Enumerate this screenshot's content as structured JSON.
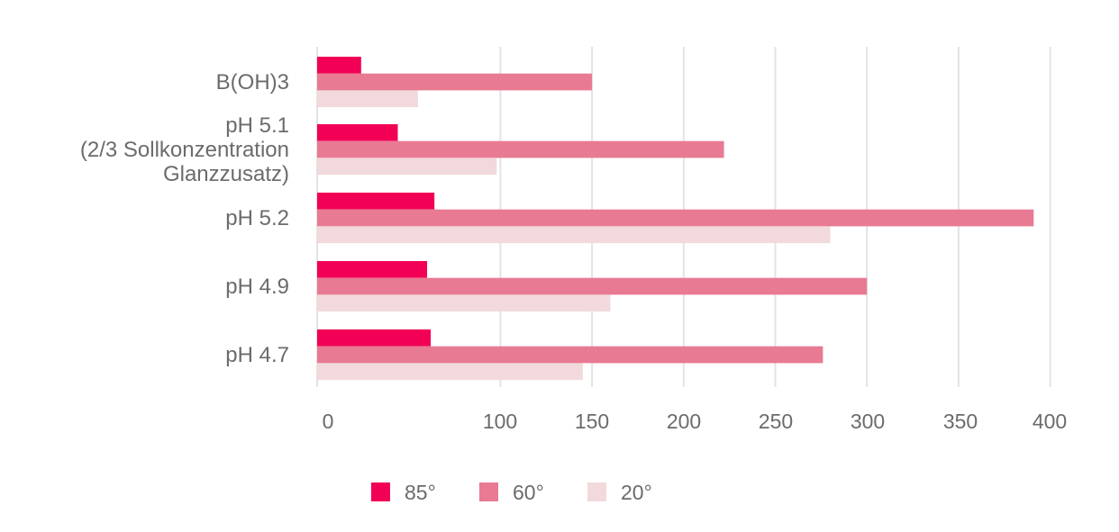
{
  "chart_data": {
    "type": "bar",
    "orientation": "horizontal",
    "categories": [
      [
        "B(OH)3"
      ],
      [
        "pH 5.1",
        "(2/3 Sollkonzentration",
        "Glanzzusatz)"
      ],
      [
        "pH 5.2"
      ],
      [
        "pH 4.9"
      ],
      [
        "pH 4.7"
      ]
    ],
    "series": [
      {
        "name": "85°",
        "color": "#f20056",
        "values": [
          24,
          44,
          64,
          60,
          62
        ]
      },
      {
        "name": "60°",
        "color": "#e87a93",
        "values": [
          150,
          222,
          391,
          300,
          276
        ]
      },
      {
        "name": "20°",
        "color": "#f2d9db",
        "values": [
          55,
          98,
          280,
          160,
          145
        ]
      }
    ],
    "xticks": [
      0,
      100,
      150,
      200,
      250,
      300,
      350,
      400
    ],
    "xlim": [
      0,
      400
    ],
    "grid": true,
    "legend_position": "bottom"
  }
}
